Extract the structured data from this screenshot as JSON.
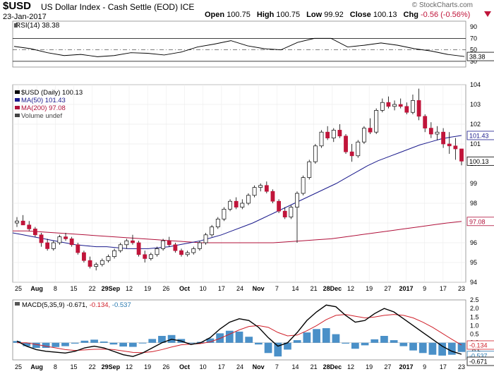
{
  "header": {
    "symbol": "$USD",
    "description": "US Dollar Index - Cash Settle (EOD) ICE",
    "date": "23-Jan-2017",
    "open_label": "Open",
    "open": "100.75",
    "high_label": "High",
    "high": "100.75",
    "low_label": "Low",
    "low": "99.92",
    "close_label": "Close",
    "close": "100.13",
    "chg_label": "Chg",
    "chg": "-0.56 (-0.56%)",
    "watermark": "© StockCharts.com",
    "chg_color": "#c0153a"
  },
  "chart_data": [
    {
      "type": "line",
      "name": "RSI(14)",
      "legend": "RSI(14) 38.38",
      "value_label": "38.38",
      "ylim": [
        20,
        100
      ],
      "yticks": [
        30,
        50,
        70,
        90
      ],
      "reference_lines": [
        30,
        50,
        70
      ],
      "x": [
        "2017-07-20",
        "2017-07-26",
        "2017-08-01",
        "2017-08-08",
        "2017-08-15",
        "2017-08-22",
        "2017-08-29",
        "2017-09-05",
        "2017-09-12",
        "2017-09-19",
        "2017-09-26",
        "2017-10-03",
        "2017-10-10",
        "2017-10-17",
        "2017-10-24",
        "2017-10-31",
        "2017-11-07",
        "2017-11-14",
        "2017-11-21",
        "2017-11-28",
        "2017-12-05",
        "2017-12-12",
        "2017-12-19",
        "2017-12-27",
        "2017-01-03",
        "2017-01-09",
        "2017-01-17",
        "2017-01-23"
      ],
      "values": [
        56,
        52,
        45,
        40,
        42,
        38,
        40,
        45,
        44,
        41,
        46,
        55,
        60,
        66,
        57,
        52,
        50,
        63,
        70,
        70,
        55,
        58,
        62,
        58,
        52,
        48,
        42,
        38.38
      ]
    },
    {
      "type": "candlestick",
      "name": "$USD (Daily)",
      "legend": [
        {
          "label": "$USD (Daily) 100.13",
          "color": "#000000"
        },
        {
          "label": "MA(50) 101.43",
          "color": "#1a1a8c"
        },
        {
          "label": "MA(200) 97.08",
          "color": "#b0103a"
        },
        {
          "label": "Volume undef",
          "color": "#444444"
        }
      ],
      "ylim": [
        94,
        104
      ],
      "yticks": [
        94,
        95,
        96,
        97,
        98,
        99,
        100,
        101,
        102,
        103,
        104
      ],
      "last_value_labels": [
        {
          "label": "101.43",
          "value": 101.43
        },
        {
          "label": "100.13",
          "value": 100.13
        },
        {
          "label": "97.08",
          "value": 97.08
        }
      ],
      "x_labels": [
        "25",
        "Aug",
        "8",
        "15",
        "22",
        "29Sep",
        "12",
        "19",
        "26",
        "Oct",
        "10",
        "17",
        "24",
        "Nov",
        "7",
        "14",
        "21",
        "28Dec",
        "12",
        "19",
        "27",
        "2017",
        "9",
        "17",
        "23"
      ],
      "ohlc": [
        [
          97.0,
          97.3,
          96.8,
          97.1
        ],
        [
          97.1,
          97.4,
          96.9,
          96.9
        ],
        [
          96.9,
          97.1,
          96.6,
          96.7
        ],
        [
          96.7,
          96.8,
          96.3,
          96.4
        ],
        [
          96.4,
          96.5,
          95.8,
          96.0
        ],
        [
          96.0,
          96.2,
          95.6,
          95.7
        ],
        [
          95.7,
          96.1,
          95.6,
          96.0
        ],
        [
          96.0,
          96.4,
          95.9,
          96.3
        ],
        [
          96.3,
          96.5,
          96.1,
          96.2
        ],
        [
          96.2,
          96.3,
          95.8,
          95.9
        ],
        [
          95.9,
          96.0,
          95.4,
          95.5
        ],
        [
          95.5,
          95.6,
          95.0,
          95.1
        ],
        [
          95.1,
          95.3,
          94.7,
          94.8
        ],
        [
          94.8,
          95.0,
          94.6,
          94.9
        ],
        [
          94.9,
          95.2,
          94.8,
          95.1
        ],
        [
          95.1,
          95.4,
          95.0,
          95.3
        ],
        [
          95.3,
          95.7,
          95.2,
          95.6
        ],
        [
          95.6,
          96.0,
          95.5,
          95.9
        ],
        [
          95.9,
          96.2,
          95.7,
          96.1
        ],
        [
          96.1,
          96.4,
          95.9,
          96.0
        ],
        [
          96.0,
          96.1,
          95.3,
          95.4
        ],
        [
          95.4,
          95.6,
          95.0,
          95.2
        ],
        [
          95.2,
          95.5,
          95.1,
          95.4
        ],
        [
          95.4,
          95.8,
          95.3,
          95.7
        ],
        [
          95.7,
          96.2,
          95.6,
          96.1
        ],
        [
          96.1,
          96.3,
          95.8,
          95.9
        ],
        [
          95.9,
          96.0,
          95.5,
          95.6
        ],
        [
          95.6,
          95.7,
          95.3,
          95.4
        ],
        [
          95.4,
          95.6,
          95.3,
          95.5
        ],
        [
          95.5,
          95.8,
          95.4,
          95.7
        ],
        [
          95.7,
          96.1,
          95.6,
          96.0
        ],
        [
          96.0,
          96.5,
          95.9,
          96.4
        ],
        [
          96.4,
          96.9,
          96.3,
          96.8
        ],
        [
          96.8,
          97.3,
          96.7,
          97.2
        ],
        [
          97.2,
          97.8,
          97.1,
          97.7
        ],
        [
          97.7,
          98.2,
          97.6,
          98.1
        ],
        [
          98.1,
          98.3,
          97.7,
          97.8
        ],
        [
          97.8,
          98.2,
          97.7,
          98.0
        ],
        [
          98.0,
          98.5,
          97.9,
          98.4
        ],
        [
          98.4,
          98.9,
          98.3,
          98.8
        ],
        [
          98.8,
          99.0,
          98.6,
          98.9
        ],
        [
          98.9,
          99.1,
          98.5,
          98.6
        ],
        [
          98.6,
          98.7,
          98.0,
          98.1
        ],
        [
          98.1,
          98.2,
          97.5,
          97.6
        ],
        [
          97.6,
          97.8,
          97.2,
          97.3
        ],
        [
          97.3,
          97.9,
          97.2,
          97.8
        ],
        [
          97.8,
          98.6,
          96.0,
          98.5
        ],
        [
          98.5,
          99.4,
          98.4,
          99.3
        ],
        [
          99.3,
          100.2,
          99.2,
          100.1
        ],
        [
          100.1,
          101.0,
          100.0,
          100.9
        ],
        [
          100.9,
          101.7,
          100.8,
          101.6
        ],
        [
          101.6,
          101.9,
          101.2,
          101.3
        ],
        [
          101.3,
          101.8,
          101.1,
          101.7
        ],
        [
          101.7,
          102.0,
          101.3,
          101.4
        ],
        [
          101.4,
          101.5,
          100.5,
          100.6
        ],
        [
          100.6,
          101.0,
          100.1,
          100.4
        ],
        [
          100.4,
          101.2,
          100.3,
          101.1
        ],
        [
          101.1,
          101.9,
          101.0,
          101.8
        ],
        [
          101.8,
          102.3,
          101.5,
          101.6
        ],
        [
          101.6,
          102.8,
          101.5,
          102.7
        ],
        [
          102.7,
          103.3,
          102.6,
          103.1
        ],
        [
          103.1,
          103.4,
          102.8,
          102.9
        ],
        [
          102.9,
          103.2,
          102.7,
          103.0
        ],
        [
          103.0,
          103.3,
          102.8,
          102.9
        ],
        [
          102.9,
          103.1,
          102.5,
          102.6
        ],
        [
          102.6,
          103.5,
          102.5,
          103.2
        ],
        [
          103.2,
          103.8,
          102.2,
          102.4
        ],
        [
          102.4,
          102.5,
          101.6,
          101.8
        ],
        [
          101.8,
          102.1,
          101.3,
          101.5
        ],
        [
          101.5,
          101.9,
          101.2,
          101.6
        ],
        [
          101.6,
          101.8,
          100.8,
          101.0
        ],
        [
          101.0,
          101.6,
          100.5,
          100.9
        ],
        [
          100.9,
          101.3,
          100.2,
          100.75
        ],
        [
          100.75,
          100.75,
          99.92,
          100.13
        ]
      ],
      "ma50": [
        96.5,
        96.4,
        96.3,
        96.2,
        96.1,
        96.0,
        95.9,
        95.85,
        95.8,
        95.8,
        95.75,
        95.7,
        95.7,
        95.7,
        95.75,
        95.8,
        95.9,
        96.0,
        96.1,
        96.25,
        96.4,
        96.6,
        96.8,
        97.0,
        97.25,
        97.5,
        97.75,
        98.0,
        98.25,
        98.5,
        98.75,
        99.0,
        99.3,
        99.6,
        99.9,
        100.15,
        100.35,
        100.55,
        100.75,
        100.95,
        101.1,
        101.25,
        101.35,
        101.43
      ],
      "ma200": [
        96.6,
        96.6,
        96.55,
        96.5,
        96.45,
        96.4,
        96.35,
        96.3,
        96.25,
        96.2,
        96.15,
        96.1,
        96.05,
        96.0,
        96.0,
        96.0,
        96.0,
        96.0,
        96.0,
        96.05,
        96.1,
        96.15,
        96.2,
        96.3,
        96.4,
        96.5,
        96.6,
        96.7,
        96.8,
        96.9,
        97.0,
        97.08
      ]
    },
    {
      "type": "line",
      "name": "MACD(5,35,9)",
      "legend": "MACD(5,35,9) -0.671, -0.134, -0.537",
      "legend_prefix": "MACD(5,35,9)",
      "legend_values": [
        "-0.671",
        "-0.134",
        "-0.537"
      ],
      "ylim": [
        -1.0,
        2.5
      ],
      "yticks": [
        -1.0,
        -0.5,
        0.0,
        0.5,
        1.0,
        1.5,
        2.0,
        2.5
      ],
      "value_labels": [
        "-0.134",
        "-0.537",
        "-0.671"
      ],
      "series": [
        {
          "name": "MACD",
          "color": "#000000",
          "values": [
            0.1,
            -0.2,
            -0.4,
            -0.5,
            -0.55,
            -0.6,
            -0.5,
            -0.3,
            -0.2,
            -0.3,
            -0.5,
            -0.7,
            -0.8,
            -0.6,
            -0.3,
            0.0,
            0.2,
            0.1,
            -0.1,
            0.0,
            0.3,
            0.8,
            1.2,
            1.4,
            1.3,
            0.9,
            0.3,
            -0.2,
            0.0,
            0.6,
            1.3,
            1.8,
            2.2,
            2.1,
            1.6,
            1.2,
            1.3,
            1.7,
            2.0,
            1.8,
            1.4,
            1.0,
            0.6,
            0.2,
            -0.2,
            -0.5,
            -0.671
          ]
        },
        {
          "name": "Signal",
          "color": "#d0202a",
          "values": [
            0.0,
            0.0,
            -0.1,
            -0.2,
            -0.3,
            -0.4,
            -0.45,
            -0.42,
            -0.38,
            -0.37,
            -0.4,
            -0.48,
            -0.56,
            -0.58,
            -0.52,
            -0.4,
            -0.25,
            -0.12,
            -0.08,
            -0.05,
            0.05,
            0.25,
            0.5,
            0.75,
            0.95,
            1.0,
            0.9,
            0.6,
            0.4,
            0.45,
            0.7,
            1.0,
            1.35,
            1.6,
            1.65,
            1.55,
            1.45,
            1.5,
            1.6,
            1.65,
            1.6,
            1.45,
            1.2,
            0.9,
            0.55,
            0.2,
            -0.134
          ]
        },
        {
          "name": "Histogram",
          "color": "#4a90c8",
          "values": [
            0.1,
            -0.2,
            -0.3,
            -0.3,
            -0.25,
            -0.2,
            -0.05,
            0.12,
            0.18,
            0.07,
            -0.1,
            -0.22,
            -0.24,
            -0.02,
            0.22,
            0.4,
            0.45,
            0.22,
            -0.02,
            0.05,
            0.25,
            0.55,
            0.7,
            0.65,
            0.35,
            -0.1,
            -0.6,
            -0.8,
            -0.4,
            0.15,
            0.6,
            0.8,
            0.85,
            0.5,
            -0.05,
            -0.35,
            -0.15,
            0.2,
            0.4,
            0.15,
            -0.2,
            -0.45,
            -0.6,
            -0.7,
            -0.75,
            -0.7,
            -0.537
          ]
        }
      ]
    }
  ]
}
